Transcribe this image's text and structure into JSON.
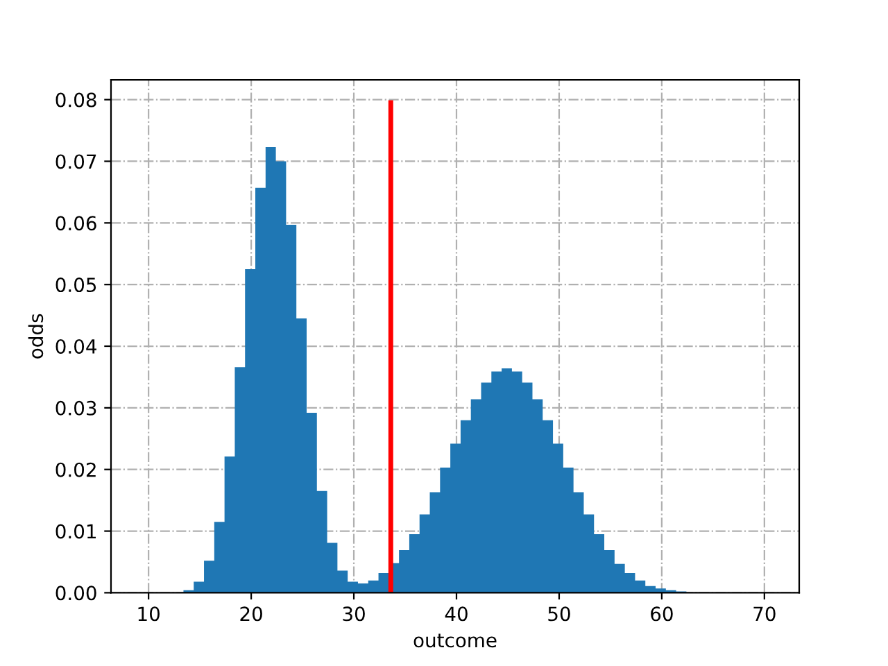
{
  "chart_data": {
    "type": "histogram",
    "xlabel": "outcome",
    "ylabel": "odds",
    "bins": [
      13.4,
      14.4,
      15.4,
      16.4,
      17.4,
      18.4,
      19.4,
      20.4,
      21.4,
      22.4,
      23.4,
      24.4,
      25.4,
      26.4,
      27.4,
      28.4,
      29.4,
      30.4,
      31.4,
      32.4,
      33.4,
      34.4,
      35.4,
      36.4,
      37.4,
      38.4,
      39.4,
      40.4,
      41.4,
      42.4,
      43.4,
      44.4,
      45.4,
      46.4,
      47.4,
      48.4,
      49.4,
      50.4,
      51.4,
      52.4,
      53.4,
      54.4,
      55.4,
      56.4,
      57.4,
      58.4,
      59.4,
      60.4,
      61.4,
      62.4
    ],
    "series": [
      {
        "color": "#1f77b4",
        "values": [
          0.0004,
          0.0018,
          0.0052,
          0.0115,
          0.0221,
          0.0366,
          0.0525,
          0.0657,
          0.0723,
          0.07,
          0.0597,
          0.0445,
          0.0292,
          0.0165,
          0.0081,
          0.0036,
          0.0018,
          0.0015,
          0.002,
          0.0032,
          0.0048,
          0.0069,
          0.0095,
          0.0127,
          0.0163,
          0.0203,
          0.0242,
          0.028,
          0.0314,
          0.0341,
          0.0359,
          0.0364,
          0.0359,
          0.0341,
          0.0314,
          0.028,
          0.0242,
          0.0203,
          0.0163,
          0.0127,
          0.0095,
          0.0069,
          0.0047,
          0.0032,
          0.002,
          0.0011,
          0.0007,
          0.0004,
          0.0002
        ]
      },
      {
        "type": "line",
        "color": "#ff0000",
        "x": [
          33.6,
          33.6
        ],
        "values": [
          0,
          0.0795
        ]
      }
    ],
    "xlim": [
      6.34,
      73.39
    ],
    "ylim": [
      0,
      0.0832
    ],
    "xticks": [
      10,
      20,
      30,
      40,
      50,
      60,
      70
    ],
    "yticks": [
      {
        "value": 0,
        "label": "0.00"
      },
      {
        "value": 0.01,
        "label": "0.01"
      },
      {
        "value": 0.02,
        "label": "0.02"
      },
      {
        "value": 0.03,
        "label": "0.03"
      },
      {
        "value": 0.04,
        "label": "0.04"
      },
      {
        "value": 0.05,
        "label": "0.05"
      },
      {
        "value": 0.06,
        "label": "0.06"
      },
      {
        "value": 0.07,
        "label": "0.07"
      },
      {
        "value": 0.08,
        "label": "0.08"
      }
    ],
    "grid": true,
    "line_style": "solid",
    "marker": "none"
  }
}
